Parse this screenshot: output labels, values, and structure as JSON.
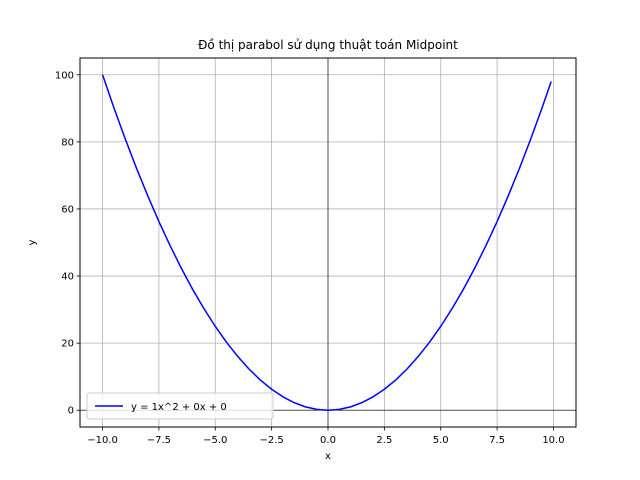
{
  "chart_data": {
    "type": "line",
    "title": "Đồ thị parabol sử dụng thuật toán Midpoint",
    "xlabel": "x",
    "ylabel": "y",
    "xlim": [
      -11,
      11
    ],
    "ylim": [
      -5,
      105
    ],
    "x_ticks": [
      -10,
      -7.5,
      -5,
      -2.5,
      0,
      2.5,
      5,
      7.5,
      10
    ],
    "x_tick_labels": [
      "−10.0",
      "−7.5",
      "−5.0",
      "−2.5",
      "0.0",
      "2.5",
      "5.0",
      "7.5",
      "10.0"
    ],
    "y_ticks": [
      0,
      20,
      40,
      60,
      80,
      100
    ],
    "y_tick_labels": [
      "0",
      "20",
      "40",
      "60",
      "80",
      "100"
    ],
    "grid": true,
    "legend_position": "lower-left",
    "reference_lines": {
      "horizontal_at_y": 0,
      "vertical_at_x": 0,
      "color": "#000000"
    },
    "series": [
      {
        "name": "y = 1x^2 + 0x + 0",
        "color": "#0000ff",
        "x": [
          -10,
          -9.5,
          -9,
          -8.5,
          -8,
          -7.5,
          -7,
          -6.5,
          -6,
          -5.5,
          -5,
          -4.5,
          -4,
          -3.5,
          -3,
          -2.5,
          -2,
          -1.5,
          -1,
          -0.5,
          0,
          0.5,
          1,
          1.5,
          2,
          2.5,
          3,
          3.5,
          4,
          4.5,
          5,
          5.5,
          6,
          6.5,
          7,
          7.5,
          8,
          8.5,
          9,
          9.5,
          9.9
        ],
        "y": [
          100,
          90.25,
          81,
          72.25,
          64,
          56.25,
          49,
          42.25,
          36,
          30.25,
          25,
          20.25,
          16,
          12.25,
          9,
          6.25,
          4,
          2.25,
          1,
          0.25,
          0,
          0.25,
          1,
          2.25,
          4,
          6.25,
          9,
          12.25,
          16,
          20.25,
          25,
          30.25,
          36,
          42.25,
          49,
          56.25,
          64,
          72.25,
          81,
          90.25,
          98.01
        ]
      }
    ]
  }
}
